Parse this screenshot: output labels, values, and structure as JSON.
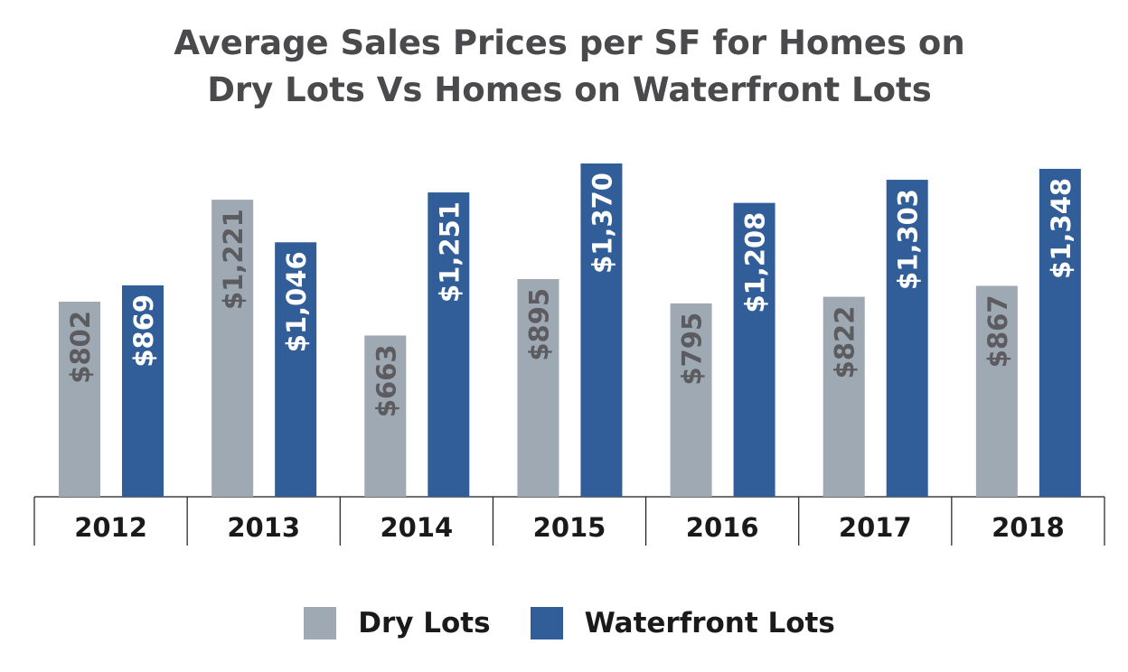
{
  "chart_data": {
    "type": "bar",
    "title_lines": [
      "Average Sales Prices per SF for Homes on",
      "Dry Lots Vs Homes on Waterfront Lots"
    ],
    "categories": [
      "2012",
      "2013",
      "2014",
      "2015",
      "2016",
      "2017",
      "2018"
    ],
    "series": [
      {
        "name": "Dry Lots",
        "color": "#9ea9b3",
        "values": [
          802,
          1221,
          663,
          895,
          795,
          822,
          867
        ],
        "labels": [
          "$802",
          "$1,221",
          "$663",
          "$895",
          "$795",
          "$822",
          "$867"
        ]
      },
      {
        "name": "Waterfront Lots",
        "color": "#315d98",
        "values": [
          869,
          1046,
          1251,
          1370,
          1208,
          1303,
          1348
        ],
        "labels": [
          "$869",
          "$1,046",
          "$1,251",
          "$1,370",
          "$1,208",
          "$1,303",
          "$1,348"
        ]
      }
    ],
    "ylim": [
      0,
      1370
    ],
    "grid": false,
    "legend_position": "bottom-center",
    "label_colors": {
      "dry": "#5c5c60",
      "waterfront": "#ffffff"
    }
  }
}
